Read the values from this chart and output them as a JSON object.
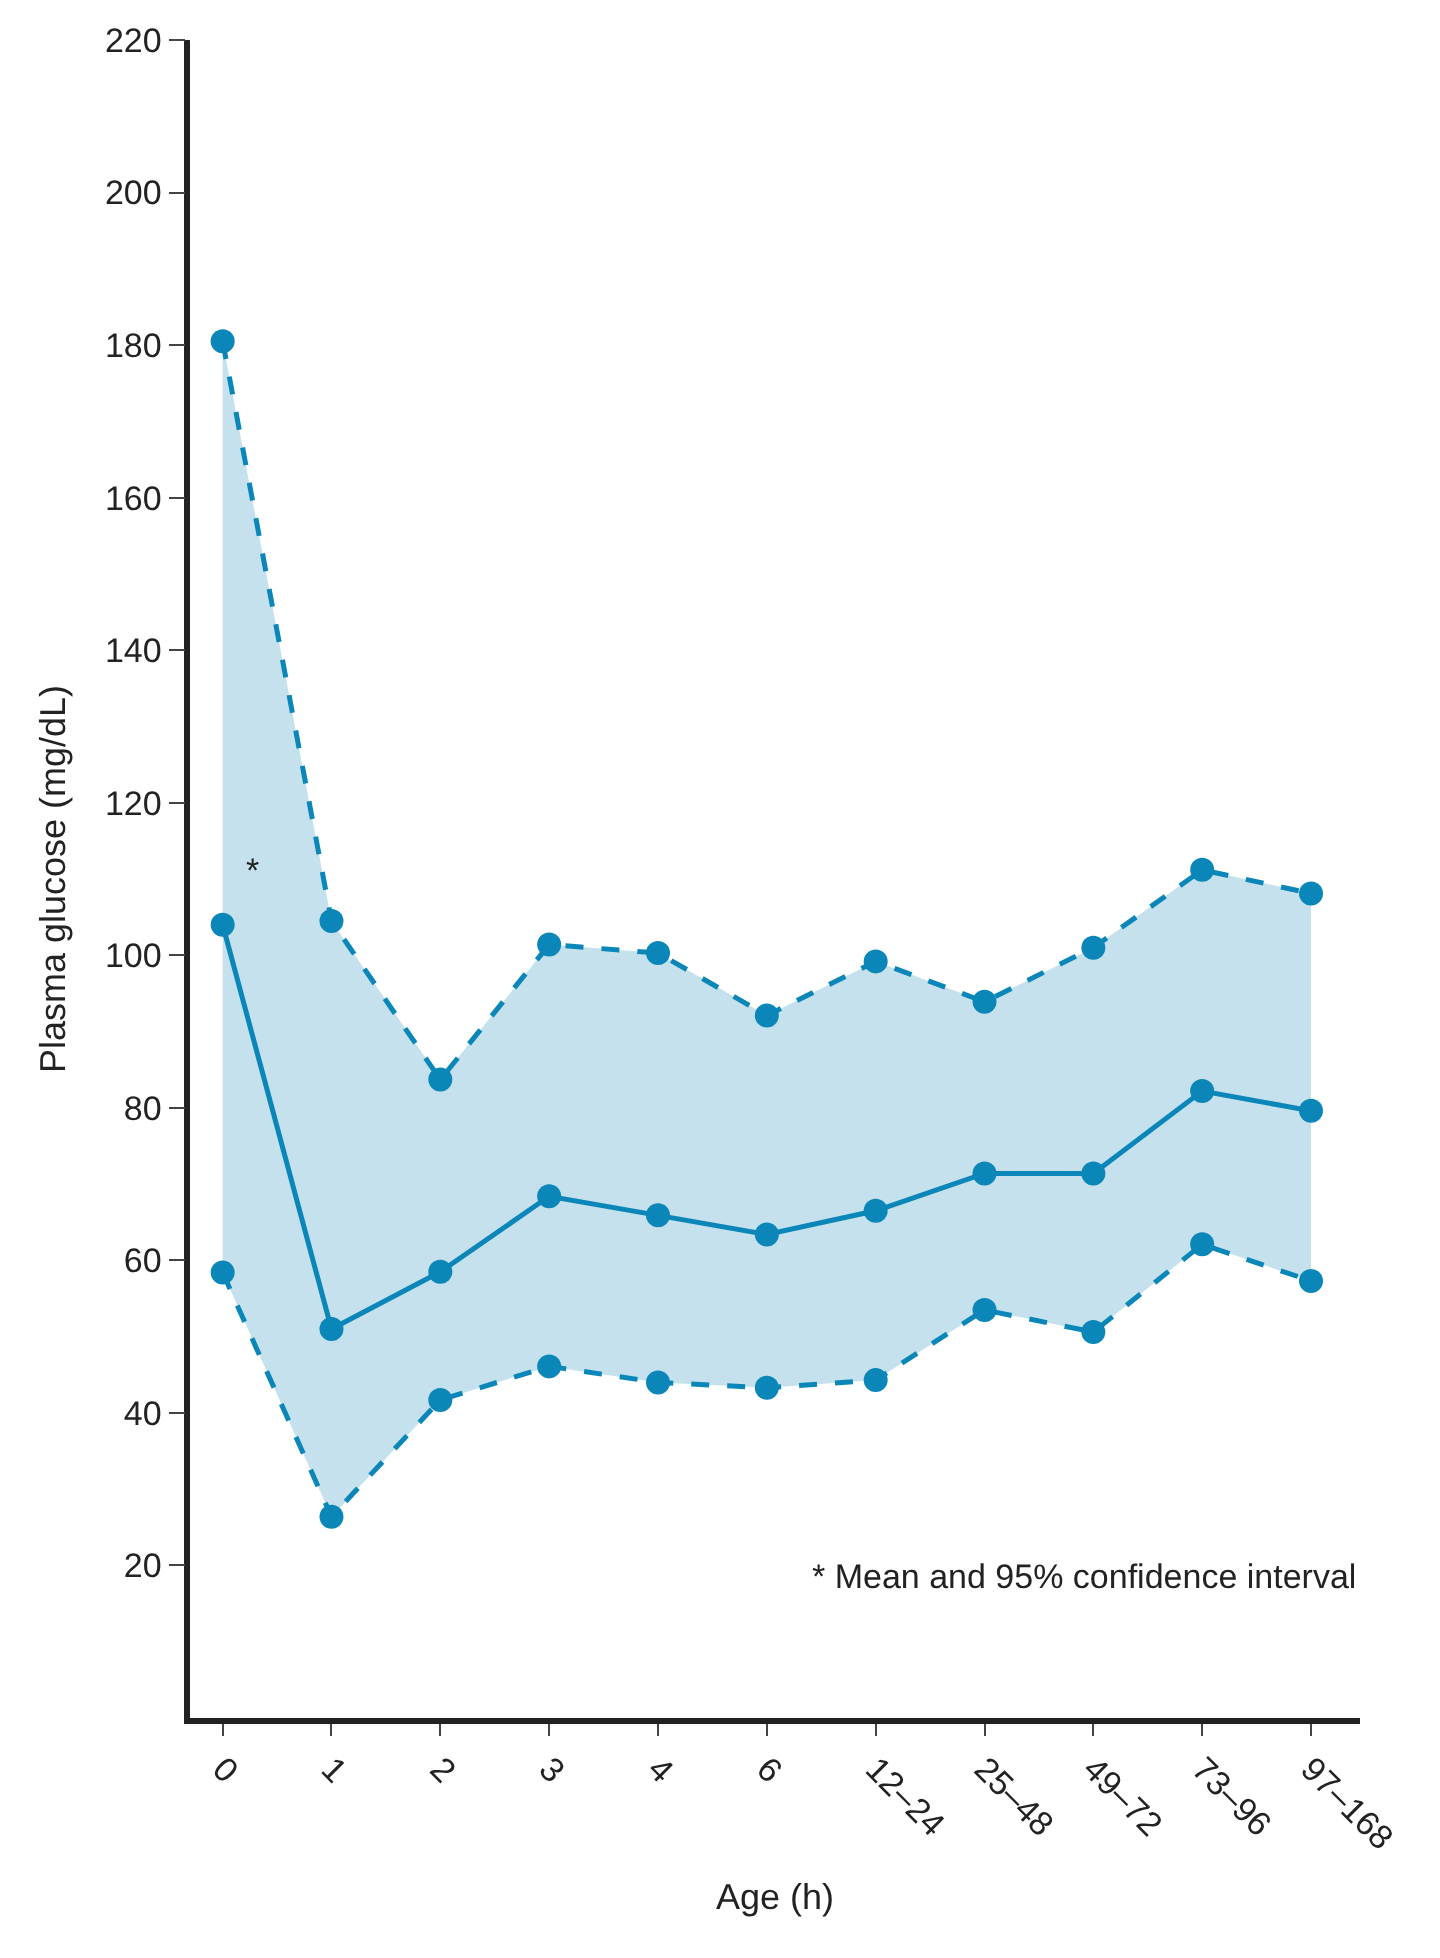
{
  "chart_data": {
    "type": "line",
    "xlabel": "Age (h)",
    "ylabel": "Plasma glucose (mg/dL)",
    "categories": [
      "0",
      "1",
      "2",
      "3",
      "4",
      "6",
      "12–24",
      "25–48",
      "49–72",
      "73–96",
      "97–168"
    ],
    "series": [
      {
        "color": "#0a86b8",
        "line_style": "solid",
        "values": [
          104,
          51,
          58.5,
          68.4,
          65.9,
          63.4,
          66.5,
          71.4,
          71.4,
          82.2,
          79.6
        ],
        "lower": [
          58.4,
          26.4,
          41.7,
          46.1,
          44,
          43.3,
          44.3,
          53.5,
          50.6,
          62.1,
          57.3
        ],
        "upper": [
          180.5,
          104.5,
          83.7,
          101.4,
          100.3,
          92.1,
          99.2,
          93.9,
          101,
          111.2,
          108.1
        ]
      },
      {
        "color": "#0a86b8",
        "line_style": "dashed",
        "values": [
          180.5,
          104.5,
          83.7,
          101.4,
          100.3,
          92.1,
          99.2,
          93.9,
          101,
          111.2,
          108.1
        ]
      },
      {
        "color": "#0a86b8",
        "line_style": "dashed",
        "values": [
          58.4,
          26.4,
          41.7,
          46.1,
          44,
          43.3,
          44.3,
          53.5,
          50.6,
          62.1,
          57.3
        ]
      }
    ],
    "ylim": [
      0,
      220
    ],
    "yticks": [
      20,
      40,
      60,
      80,
      100,
      120,
      140,
      160,
      180,
      200,
      220
    ],
    "marker": "circle",
    "annotations": [
      "*",
      "* Mean and 95% confidence interval"
    ]
  }
}
